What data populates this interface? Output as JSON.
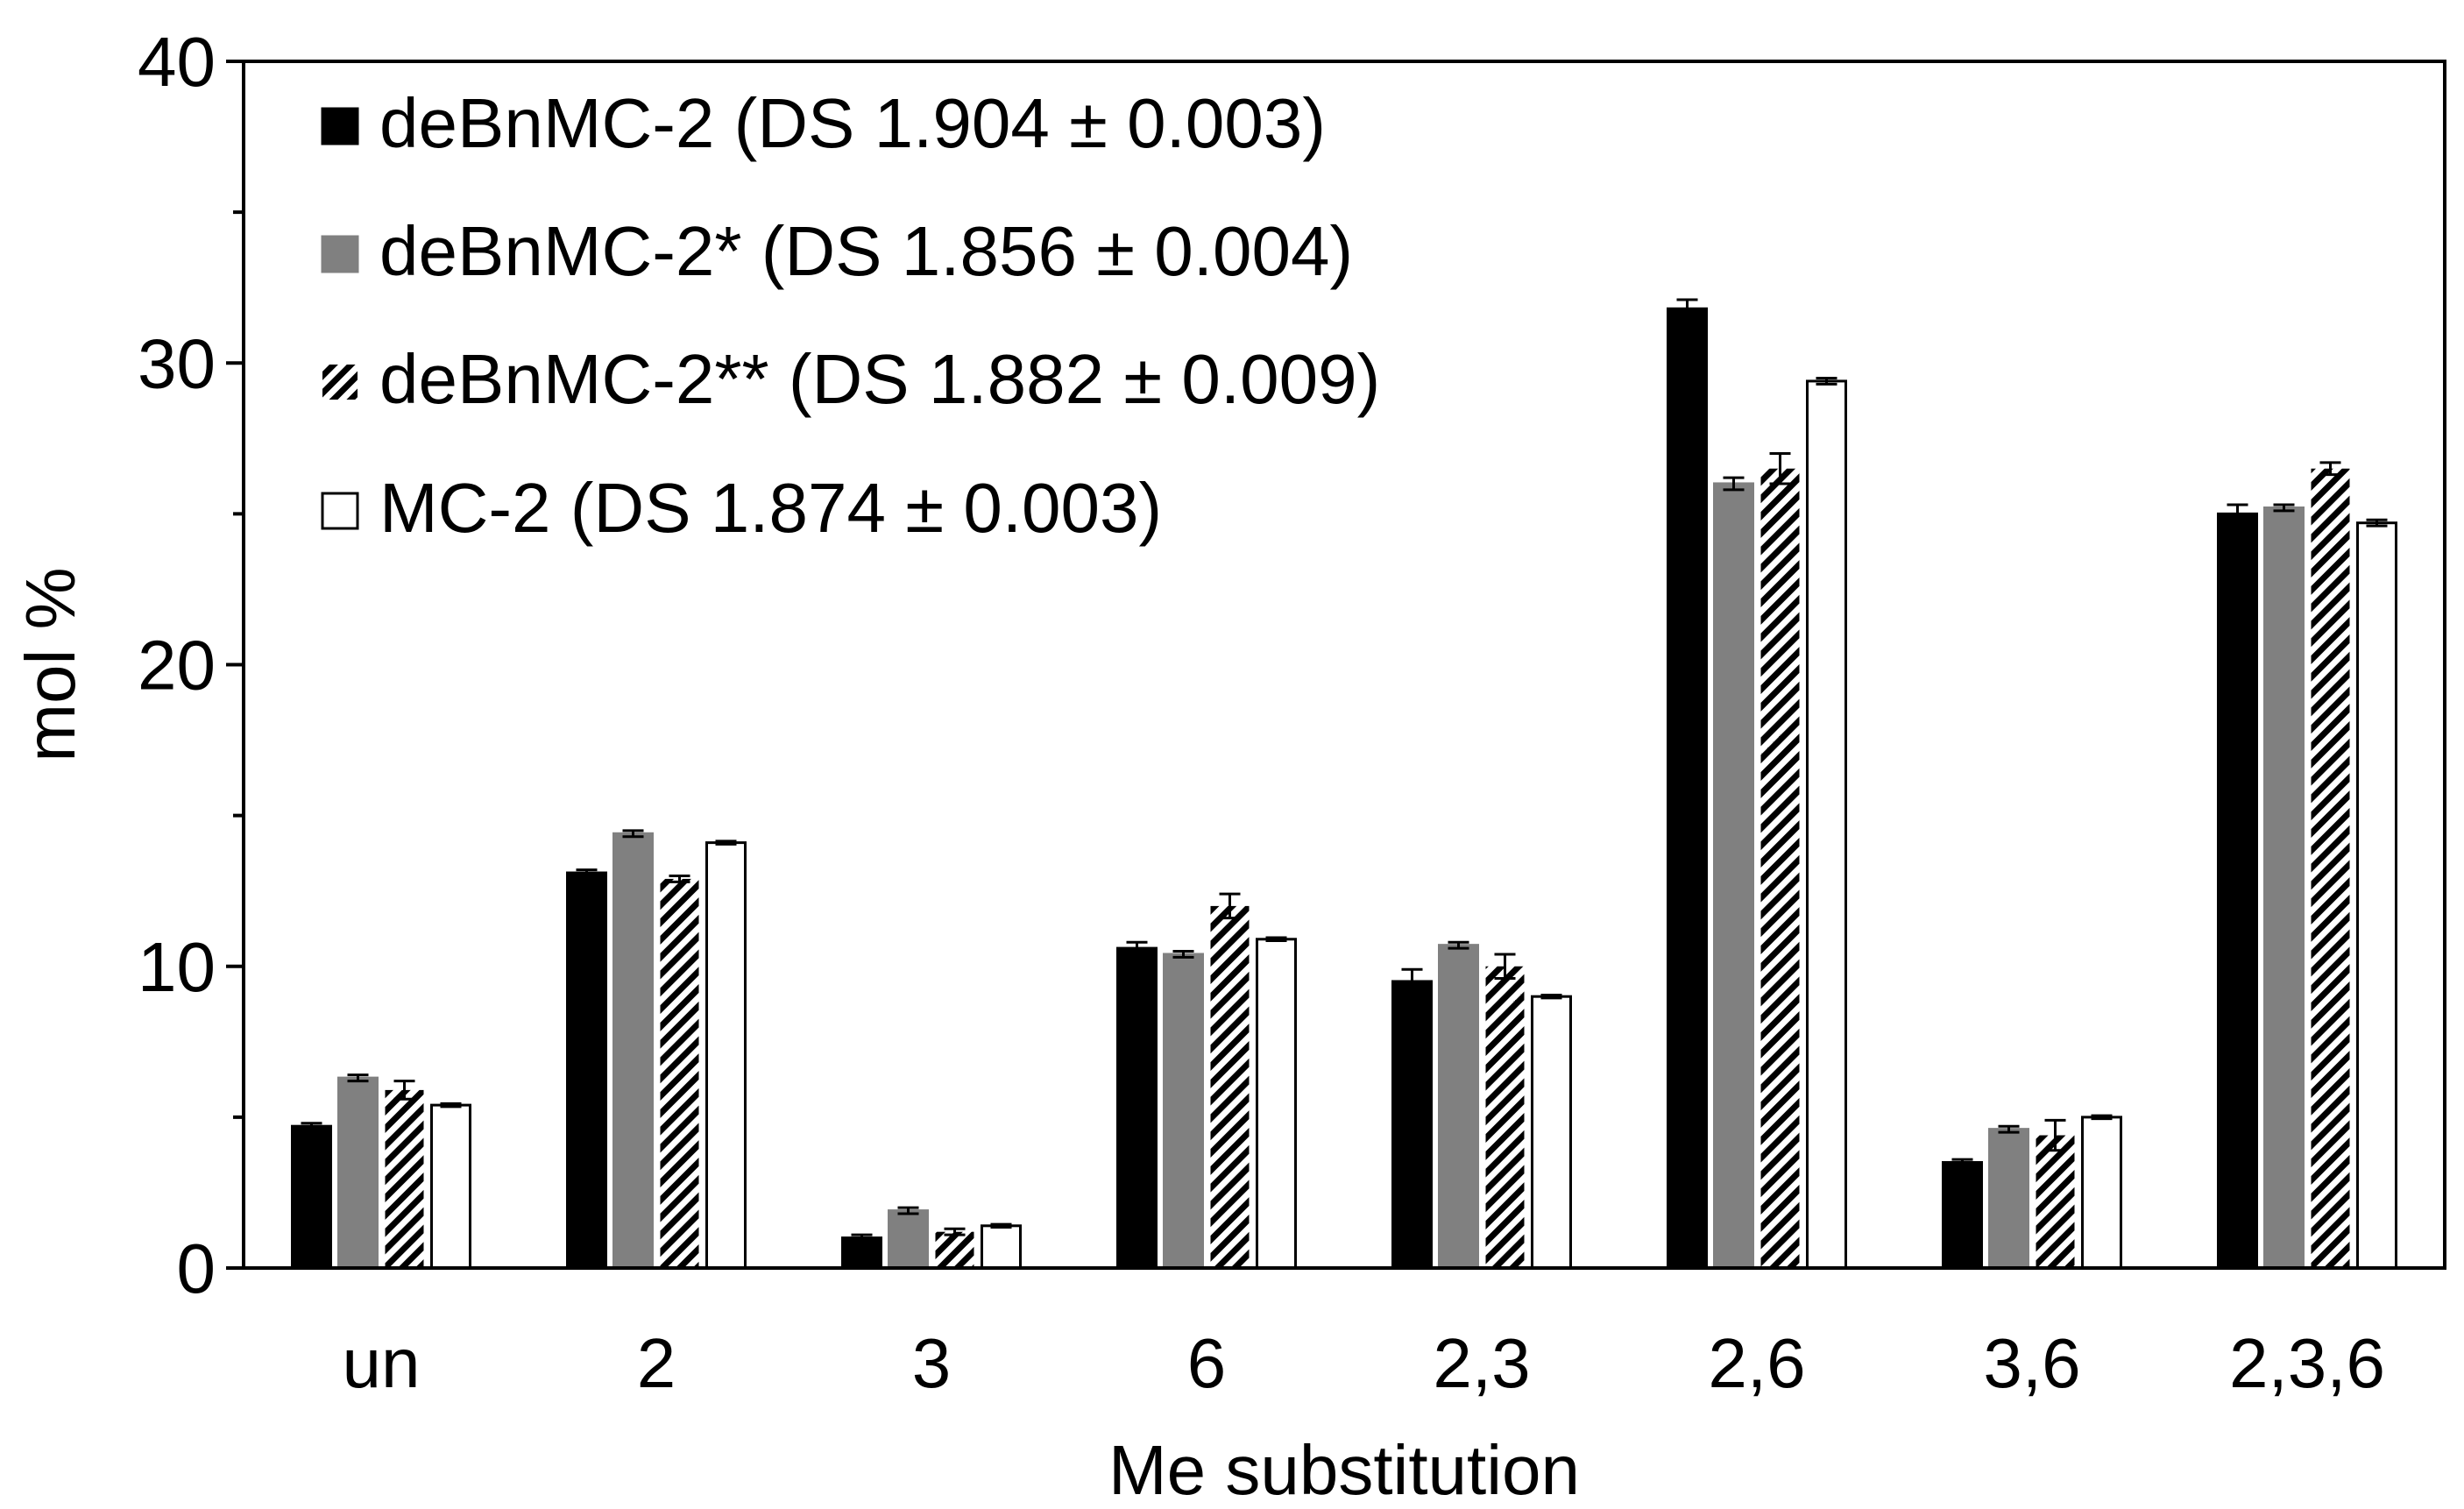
{
  "chart_data": {
    "type": "bar",
    "title": "",
    "xlabel": "Me substitution",
    "ylabel": "mol %",
    "ylim": [
      0,
      40
    ],
    "yticks": [
      0,
      10,
      20,
      30,
      40
    ],
    "ytick_labels": [
      "0",
      "10",
      "20",
      "30",
      "40"
    ],
    "grid": false,
    "legend_position": "top-left",
    "categories": [
      "un",
      "2",
      "3",
      "6",
      "2,3",
      "2,6",
      "3,6",
      "2,3,6"
    ],
    "series": [
      {
        "name": "deBnMC-2 (DS 1.904 ± 0.003)",
        "pattern": "solid-black",
        "values": [
          4.7,
          13.1,
          1.0,
          10.6,
          9.5,
          31.8,
          3.5,
          25.0
        ],
        "errors": [
          0.1,
          0.1,
          0.1,
          0.2,
          0.4,
          0.3,
          0.1,
          0.3
        ]
      },
      {
        "name": "deBnMC-2* (DS 1.856 ± 0.004)",
        "pattern": "solid-gray",
        "values": [
          6.3,
          14.4,
          1.9,
          10.4,
          10.7,
          26.0,
          4.6,
          25.2
        ],
        "errors": [
          0.1,
          0.1,
          0.1,
          0.1,
          0.1,
          0.2,
          0.1,
          0.1
        ]
      },
      {
        "name": "deBnMC-2** (DS 1.882 ± 0.009)",
        "pattern": "hatched",
        "values": [
          5.9,
          12.9,
          1.2,
          12.0,
          10.0,
          26.5,
          4.4,
          26.5
        ],
        "errors": [
          0.3,
          0.1,
          0.1,
          0.4,
          0.4,
          0.5,
          0.5,
          0.2
        ]
      },
      {
        "name": "MC-2 (DS 1.874 ± 0.003)",
        "pattern": "white",
        "values": [
          5.4,
          14.1,
          1.4,
          10.9,
          9.0,
          29.4,
          5.0,
          24.7
        ],
        "errors": [
          0.05,
          0.05,
          0.05,
          0.05,
          0.05,
          0.1,
          0.05,
          0.1
        ]
      }
    ]
  }
}
